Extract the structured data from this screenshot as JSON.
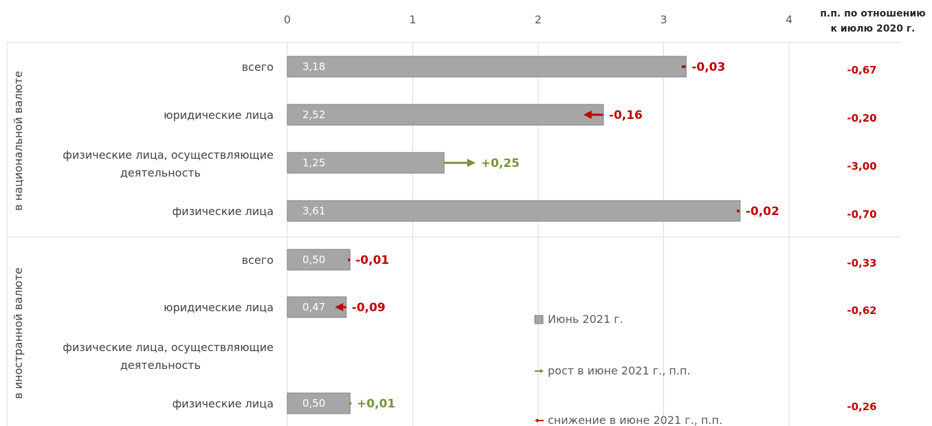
{
  "colors": {
    "bar": "#a6a6a6",
    "bar_stroke": "#7f7f7f",
    "grid": "#d9d9d9",
    "increase": "#77933c",
    "decrease": "#c00000"
  },
  "chart_data": {
    "type": "bar",
    "orientation": "horizontal",
    "xlim": [
      0,
      4
    ],
    "x_ticks": [
      "0",
      "1",
      "2",
      "3",
      "4"
    ],
    "grid": true,
    "right_header": [
      "п.п. по отношению",
      "к  июлю 2020 г."
    ],
    "groups": [
      {
        "label": "в национальной валюте",
        "rows": [
          {
            "label": [
              "всего"
            ],
            "value": 3.18,
            "value_label": "3,18",
            "change": -0.03,
            "change_label": "-0,03",
            "yoy_label": "-0,67"
          },
          {
            "label": [
              "юридические лица"
            ],
            "value": 2.52,
            "value_label": "2,52",
            "change": -0.16,
            "change_label": "-0,16",
            "yoy_label": "-0,20"
          },
          {
            "label": [
              "физические лица, осуществляющие",
              "деятельность"
            ],
            "value": 1.25,
            "value_label": "1,25",
            "change": 0.25,
            "change_label": "+0,25",
            "yoy_label": "-3,00"
          },
          {
            "label": [
              "физические лица"
            ],
            "value": 3.61,
            "value_label": "3,61",
            "change": -0.02,
            "change_label": "-0,02",
            "yoy_label": "-0,70"
          }
        ]
      },
      {
        "label": "в иностранной валюте",
        "rows": [
          {
            "label": [
              "всего"
            ],
            "value": 0.5,
            "value_label": "0,50",
            "change": -0.01,
            "change_label": "-0,01",
            "yoy_label": "-0,33"
          },
          {
            "label": [
              "юридические лица"
            ],
            "value": 0.47,
            "value_label": "0,47",
            "change": -0.09,
            "change_label": "-0,09",
            "yoy_label": "-0,62"
          },
          {
            "label": [
              "физические лица, осуществляющие",
              "деятельность"
            ],
            "value": null,
            "value_label": "",
            "change": null,
            "change_label": "",
            "yoy_label": ""
          },
          {
            "label": [
              "физические лица"
            ],
            "value": 0.5,
            "value_label": "0,50",
            "change": 0.01,
            "change_label": "+0,01",
            "yoy_label": "-0,26"
          }
        ]
      }
    ],
    "legend": {
      "placement": "bottom-right",
      "items": [
        {
          "label": "Июнь 2021 г.",
          "kind": "bar"
        },
        {
          "label": "рост в июне 2021 г., п.п.",
          "kind": "increase"
        },
        {
          "label": "снижение в июне 2021 г., п.п.",
          "kind": "decrease"
        }
      ]
    }
  }
}
